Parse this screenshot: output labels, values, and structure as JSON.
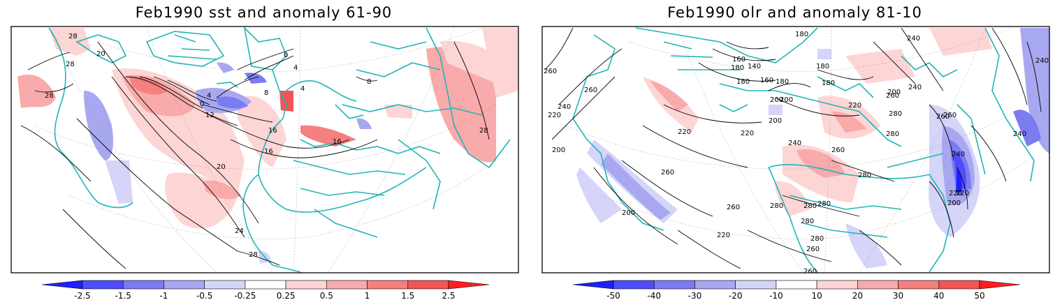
{
  "panels": [
    {
      "title": "Feb1990 sst and anomaly 61-90",
      "colorbar": {
        "labels": [
          "-2.5",
          "-1.5",
          "-1",
          "-0.5",
          "-0.25",
          "0.25",
          "0.5",
          "1",
          "1.5",
          "2.5"
        ],
        "colors": [
          "#1f1fff",
          "#4d4dff",
          "#7b7bf2",
          "#a8a8f0",
          "#d5d5fa",
          "#ffffff",
          "#fdd5d5",
          "#f9aaaa",
          "#f48080",
          "#f25555",
          "#ff1f1f"
        ]
      },
      "contour_labels": [
        "28",
        "20",
        "28",
        "28",
        "0",
        "4",
        "8",
        "4",
        "0",
        "4",
        "12",
        "16",
        "16",
        "8",
        "16",
        "20",
        "24",
        "28",
        "28"
      ]
    },
    {
      "title": "Feb1990 olr and anomaly 81-10",
      "colorbar": {
        "labels": [
          "-50",
          "-40",
          "-30",
          "-20",
          "-10",
          "10",
          "20",
          "30",
          "40",
          "50"
        ],
        "colors": [
          "#1f1fff",
          "#4d4dff",
          "#7b7bf2",
          "#a8a8f0",
          "#d5d5fa",
          "#ffffff",
          "#fdd5d5",
          "#f9aaaa",
          "#f48080",
          "#f25555",
          "#ff1f1f"
        ]
      },
      "contour_labels": [
        "260",
        "260",
        "240",
        "220",
        "200",
        "260",
        "200",
        "220",
        "220",
        "200",
        "180",
        "180",
        "180",
        "140",
        "160",
        "160",
        "180",
        "180",
        "180",
        "200",
        "200",
        "220",
        "200",
        "240",
        "220",
        "240",
        "260",
        "280",
        "280",
        "260",
        "260",
        "240",
        "220",
        "240",
        "240",
        "260",
        "280",
        "280",
        "280",
        "280",
        "280",
        "260",
        "220",
        "200",
        "260",
        "280",
        "240",
        "260"
      ]
    }
  ]
}
